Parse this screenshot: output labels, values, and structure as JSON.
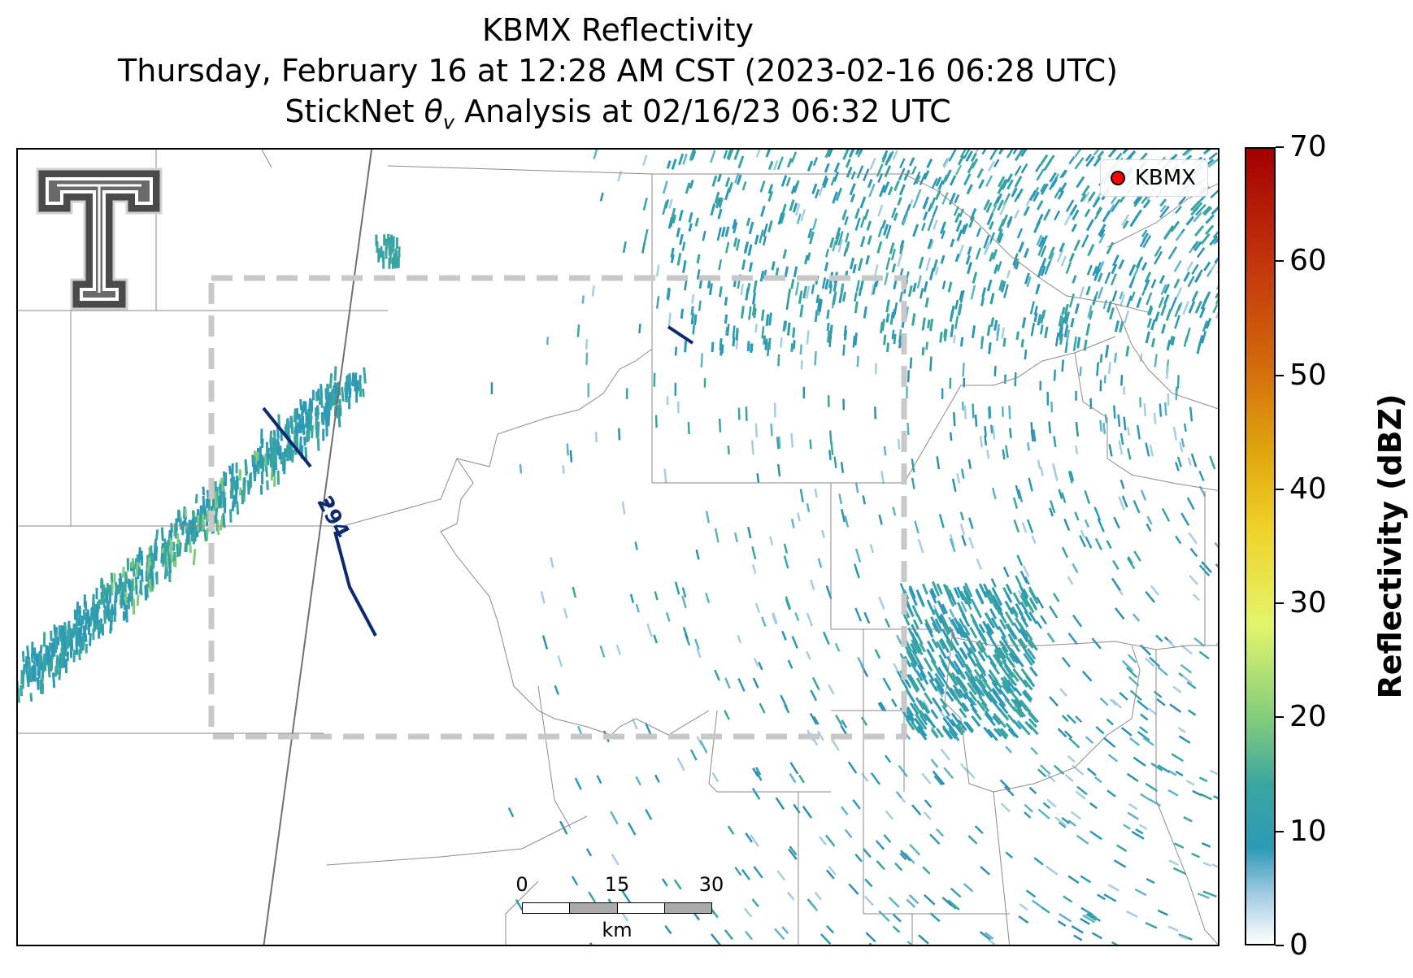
{
  "title": {
    "line1": "KBMX Reflectivity",
    "line2": "Thursday, February 16 at 12:28 AM CST (2023-02-16 06:28 UTC)",
    "line3_prefix": "StickNet ",
    "line3_theta": "θ",
    "line3_sub": "v",
    "line3_suffix": " Analysis at 02/16/23 06:32 UTC"
  },
  "legend": {
    "label": "KBMX",
    "marker_color": "#ff0000"
  },
  "contour": {
    "label": "294",
    "color": "#0d2a6e"
  },
  "scalebar": {
    "ticks": [
      "0",
      "15",
      "30"
    ],
    "unit": "km"
  },
  "colorbar": {
    "title": "Reflectivity (dBZ)",
    "ticks": [
      "0",
      "10",
      "20",
      "30",
      "40",
      "50",
      "60",
      "70"
    ],
    "min": 0,
    "max": 70
  },
  "colors": {
    "echo_blue": "#2c9ab7",
    "echo_teal": "#3aa5a0",
    "echo_light": "#a7cde4",
    "echo_green": "#7fcb7c",
    "box": "#c8c8c8"
  },
  "logo": {
    "icon": "texas-tech-double-t-icon"
  }
}
